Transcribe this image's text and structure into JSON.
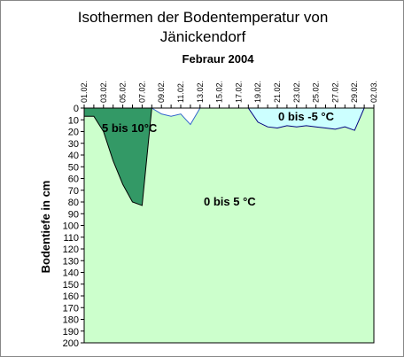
{
  "chart_data": {
    "type": "area",
    "title": "Isothermen der Bodentemperatur von Jänickendorf",
    "subtitle": "Febraur 2004",
    "y_label": "Bodentiefe in cm",
    "categories": [
      "01.02.",
      null,
      "03.02.",
      null,
      "05.02.",
      null,
      "07.02.",
      null,
      "09.02.",
      null,
      "11.02.",
      null,
      "13.02.",
      null,
      "15.02.",
      null,
      "17.02.",
      null,
      "19.02.",
      null,
      "21.02.",
      null,
      "23.02.",
      null,
      "25.02.",
      null,
      "27.02.",
      null,
      "29.02.",
      null,
      "02.03."
    ],
    "background": {
      "label": "0 bis 5 °C",
      "color": "#ccffcc"
    },
    "series": [
      {
        "name": "5 bis 10°C",
        "color": "#339966",
        "stroke": "#000000",
        "values": [
          7,
          7,
          20,
          45,
          65,
          80,
          83,
          0,
          null,
          null,
          null,
          null,
          null,
          null,
          null,
          null,
          null,
          null,
          null,
          null,
          null,
          null,
          null,
          null,
          null,
          null,
          null,
          null,
          null,
          null,
          null
        ]
      },
      {
        "color": "#ffffff",
        "stroke": "#3366cc",
        "values": [
          null,
          null,
          null,
          null,
          null,
          null,
          null,
          0,
          5,
          7,
          5,
          14,
          0,
          null,
          null,
          null,
          null,
          null,
          null,
          null,
          null,
          null,
          null,
          null,
          null,
          null,
          null,
          null,
          null,
          null,
          null
        ]
      },
      {
        "name": "0 bis -5 °C",
        "color": "#ccffff",
        "stroke": "#000080",
        "values": [
          null,
          null,
          null,
          null,
          null,
          null,
          null,
          null,
          null,
          null,
          null,
          null,
          null,
          null,
          null,
          null,
          null,
          0,
          12,
          16,
          17,
          15,
          16,
          15,
          16,
          17,
          18,
          16,
          19,
          0,
          null
        ]
      }
    ],
    "ylim": [
      0,
      200
    ],
    "y_reversed": true,
    "yticks": [
      0,
      10,
      20,
      30,
      40,
      50,
      60,
      70,
      80,
      90,
      100,
      110,
      120,
      130,
      140,
      150,
      160,
      170,
      180,
      190,
      200
    ]
  }
}
